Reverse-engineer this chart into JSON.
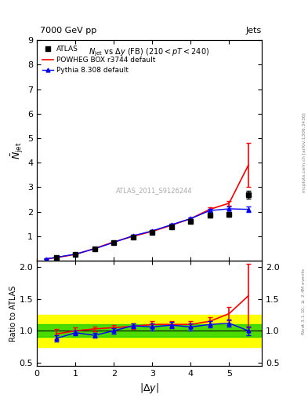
{
  "title_top": "7000 GeV pp",
  "title_right": "Jets",
  "panel_title": "N_{jet} vs \\Delta y (FB) (210 < pT < 240)",
  "xlabel": "|\\Delta y|",
  "ylabel_main": "\\bar{N}_{jet}",
  "ylabel_ratio": "Ratio to ATLAS",
  "watermark": "ATLAS_2011_S9126244",
  "atlas_x": [
    0.5,
    1.0,
    1.5,
    2.0,
    2.5,
    3.0,
    3.5,
    4.0,
    4.5,
    5.0,
    5.5
  ],
  "atlas_y": [
    0.12,
    0.25,
    0.48,
    0.75,
    0.95,
    1.15,
    1.38,
    1.62,
    1.85,
    1.88,
    2.7
  ],
  "atlas_yerr": [
    0.01,
    0.02,
    0.03,
    0.04,
    0.05,
    0.05,
    0.06,
    0.07,
    0.07,
    0.08,
    0.15
  ],
  "powheg_x": [
    0.25,
    0.5,
    1.0,
    1.5,
    2.0,
    2.5,
    3.0,
    3.5,
    4.0,
    4.5,
    5.0,
    5.5
  ],
  "powheg_y": [
    0.08,
    0.13,
    0.26,
    0.5,
    0.77,
    1.0,
    1.2,
    1.45,
    1.72,
    2.1,
    2.35,
    3.9
  ],
  "powheg_yerr_lo": [
    0.01,
    0.01,
    0.02,
    0.03,
    0.04,
    0.04,
    0.05,
    0.05,
    0.06,
    0.08,
    0.1,
    0.9
  ],
  "powheg_yerr_hi": [
    0.01,
    0.01,
    0.02,
    0.03,
    0.04,
    0.04,
    0.05,
    0.05,
    0.06,
    0.08,
    0.1,
    0.9
  ],
  "pythia_x": [
    0.25,
    0.5,
    1.0,
    1.5,
    2.0,
    2.5,
    3.0,
    3.5,
    4.0,
    4.5,
    5.0,
    5.5
  ],
  "pythia_y": [
    0.08,
    0.14,
    0.27,
    0.49,
    0.75,
    1.02,
    1.22,
    1.47,
    1.72,
    2.05,
    2.12,
    2.1
  ],
  "pythia_yerr": [
    0.01,
    0.01,
    0.02,
    0.02,
    0.03,
    0.04,
    0.04,
    0.05,
    0.06,
    0.07,
    0.08,
    0.1
  ],
  "ratio_powheg_x": [
    0.5,
    1.0,
    1.5,
    2.0,
    2.5,
    3.0,
    3.5,
    4.0,
    4.5,
    5.0,
    5.5
  ],
  "ratio_powheg_y": [
    0.95,
    1.0,
    1.03,
    1.05,
    1.07,
    1.1,
    1.1,
    1.1,
    1.15,
    1.27,
    1.55
  ],
  "ratio_powheg_yerr_lo": [
    0.08,
    0.05,
    0.04,
    0.04,
    0.04,
    0.05,
    0.05,
    0.05,
    0.06,
    0.1,
    0.5
  ],
  "ratio_powheg_yerr_hi": [
    0.08,
    0.05,
    0.04,
    0.04,
    0.04,
    0.05,
    0.05,
    0.05,
    0.06,
    0.1,
    0.5
  ],
  "ratio_pythia_x": [
    0.5,
    1.0,
    1.5,
    2.0,
    2.5,
    3.0,
    3.5,
    4.0,
    4.5,
    5.0,
    5.5
  ],
  "ratio_pythia_y": [
    0.88,
    0.97,
    0.93,
    1.0,
    1.08,
    1.06,
    1.09,
    1.06,
    1.1,
    1.12,
    1.0
  ],
  "ratio_pythia_yerr": [
    0.05,
    0.04,
    0.04,
    0.04,
    0.04,
    0.05,
    0.05,
    0.05,
    0.05,
    0.06,
    0.07
  ],
  "band_green_lo": 0.9,
  "band_green_hi": 1.1,
  "band_yellow_lo": 0.75,
  "band_yellow_hi": 1.25,
  "main_ylim": [
    0.0,
    9.0
  ],
  "main_yticks": [
    1,
    2,
    3,
    4,
    5,
    6,
    7,
    8,
    9
  ],
  "ratio_ylim": [
    0.45,
    2.1
  ],
  "ratio_yticks": [
    0.5,
    1.0,
    1.5,
    2.0
  ],
  "xlim": [
    0.0,
    5.85
  ],
  "color_atlas": "#000000",
  "color_powheg": "#ff0000",
  "color_pythia": "#0000ff",
  "color_green_band": "#00cc00",
  "color_yellow_band": "#ffff00"
}
